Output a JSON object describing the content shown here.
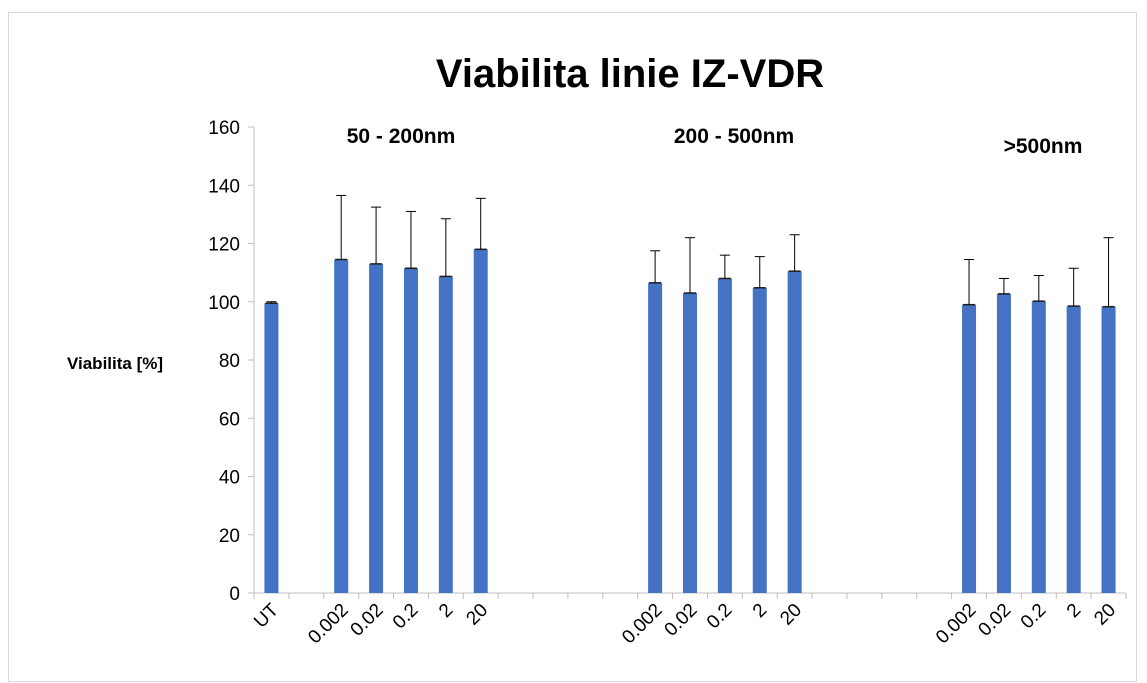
{
  "chart_data": {
    "type": "bar",
    "title": "Viabilita linie IZ-VDR",
    "ylabel": "Viabilita [%]",
    "xlabel": "",
    "ylim": [
      0,
      160
    ],
    "yticks": [
      "0",
      "20",
      "40",
      "60",
      "80",
      "100",
      "120",
      "140",
      "160"
    ],
    "grid": false,
    "legend": "none",
    "bar_color": "#4472C4",
    "group_labels": [
      "50 - 200nm",
      "200 - 500nm",
      ">500nm"
    ],
    "categories": [
      "UT",
      "",
      "0.002",
      "0.02",
      "0.2",
      "2",
      "20",
      "",
      "",
      "",
      "",
      "0.002",
      "0.02",
      "0.2",
      "2",
      "20",
      "",
      "",
      "",
      "",
      "0.002",
      "0.02",
      "0.2",
      "2",
      "20"
    ],
    "values": [
      99.5,
      null,
      114.5,
      113,
      111.5,
      108.7,
      118,
      null,
      null,
      null,
      null,
      106.5,
      103,
      108,
      104.8,
      110.5,
      null,
      null,
      null,
      null,
      99,
      102.7,
      100.2,
      98.5,
      98.3
    ],
    "error_upper": [
      100,
      null,
      136.5,
      132.5,
      131,
      128.5,
      135.5,
      null,
      null,
      null,
      null,
      117.5,
      122,
      116,
      115.5,
      123,
      null,
      null,
      null,
      null,
      114.5,
      108,
      109,
      111.5,
      122
    ]
  }
}
